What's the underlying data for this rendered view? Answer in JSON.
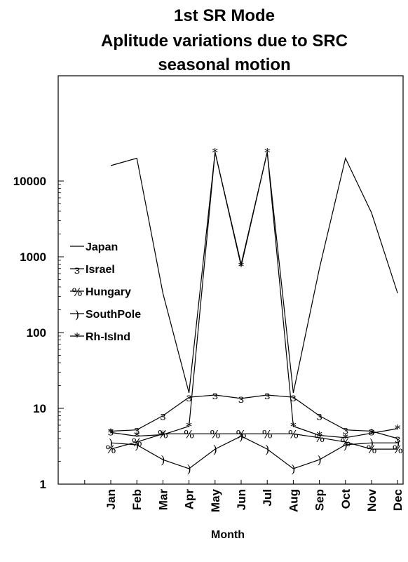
{
  "chart_data": {
    "type": "line",
    "title_lines": [
      "1st SR Mode",
      "Aplitude variations due to SRC",
      "seasonal motion"
    ],
    "xlabel": "Month",
    "ylabel": "",
    "yscale": "log",
    "ylim": [
      1,
      30000
    ],
    "yticks": [
      1,
      10,
      100,
      1000,
      10000
    ],
    "ytick_labels": [
      "1",
      "10",
      "100",
      "1000",
      "10000"
    ],
    "categories": [
      "Jan",
      "Feb",
      "Mar",
      "Apr",
      "May",
      "Jun",
      "Jul",
      "Aug",
      "Sep",
      "Oct",
      "Nov",
      "Dec"
    ],
    "grid": false,
    "legend_position": "left",
    "series": [
      {
        "name": "Japan",
        "marker": "",
        "values": [
          16000,
          20000,
          330,
          16,
          24000,
          800,
          24000,
          16,
          700,
          20000,
          3800,
          330
        ]
      },
      {
        "name": "Israel",
        "marker": "ɜ",
        "values": [
          5,
          5.2,
          8,
          14,
          15,
          13.5,
          15,
          14,
          8,
          5.2,
          5,
          4
        ]
      },
      {
        "name": "Hungary",
        "marker": "%",
        "values": [
          2.9,
          3.6,
          4.6,
          4.6,
          4.6,
          4.6,
          4.6,
          4.6,
          4.1,
          3.6,
          2.9,
          2.9
        ]
      },
      {
        "name": "SouthPole",
        "marker": ")",
        "values": [
          3.5,
          3.3,
          2.1,
          1.6,
          2.9,
          4.3,
          2.9,
          1.6,
          2.1,
          3.3,
          3.5,
          3.5
        ]
      },
      {
        "name": "Rh-IsInd",
        "marker": "*",
        "values": [
          4.8,
          4.3,
          4.5,
          5.8,
          24000,
          750,
          24000,
          5.8,
          4.4,
          4.1,
          4.7,
          5.4
        ]
      }
    ]
  }
}
